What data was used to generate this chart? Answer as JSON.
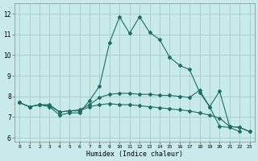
{
  "title": "",
  "xlabel": "Humidex (Indice chaleur)",
  "bg_color": "#c8eaea",
  "grid_color": "#a8d0d0",
  "line_color": "#1a6e64",
  "xlim": [
    -0.5,
    23.5
  ],
  "ylim": [
    5.8,
    12.5
  ],
  "yticks": [
    6,
    7,
    8,
    9,
    10,
    11,
    12
  ],
  "xticks": [
    0,
    1,
    2,
    3,
    4,
    5,
    6,
    7,
    8,
    9,
    10,
    11,
    12,
    13,
    14,
    15,
    16,
    17,
    18,
    19,
    20,
    21,
    22,
    23
  ],
  "series": {
    "curve1_x": [
      0,
      1,
      2,
      3,
      4,
      5,
      6,
      7,
      8,
      9,
      10,
      11,
      12,
      13,
      14,
      15,
      16,
      17,
      18,
      19,
      20,
      21,
      22
    ],
    "curve1_y": [
      7.7,
      7.5,
      7.6,
      7.5,
      7.1,
      7.2,
      7.2,
      7.8,
      8.5,
      10.6,
      11.85,
      11.05,
      11.85,
      11.1,
      10.75,
      9.9,
      9.5,
      9.3,
      8.2,
      7.5,
      6.55,
      6.5,
      6.3
    ],
    "curve2_x": [
      0,
      1,
      2,
      3,
      4,
      5,
      6,
      7,
      8,
      9,
      10,
      11,
      12,
      13,
      14,
      15,
      16,
      17,
      18,
      19,
      20,
      21,
      22,
      23
    ],
    "curve2_y": [
      7.7,
      7.5,
      7.6,
      7.55,
      7.25,
      7.3,
      7.35,
      7.6,
      7.95,
      8.1,
      8.15,
      8.15,
      8.1,
      8.1,
      8.05,
      8.05,
      8.0,
      7.95,
      8.3,
      7.5,
      8.25,
      6.55,
      6.5,
      6.3
    ],
    "curve3_x": [
      0,
      1,
      2,
      3,
      4,
      5,
      6,
      7,
      8,
      9,
      10,
      11,
      12,
      13,
      14,
      15,
      16,
      17,
      18,
      19,
      20,
      21,
      22,
      23
    ],
    "curve3_y": [
      7.7,
      7.5,
      7.6,
      7.6,
      7.25,
      7.3,
      7.3,
      7.5,
      7.6,
      7.65,
      7.6,
      7.6,
      7.55,
      7.5,
      7.45,
      7.4,
      7.35,
      7.3,
      7.2,
      7.1,
      6.95,
      6.55,
      6.5,
      6.3
    ]
  }
}
